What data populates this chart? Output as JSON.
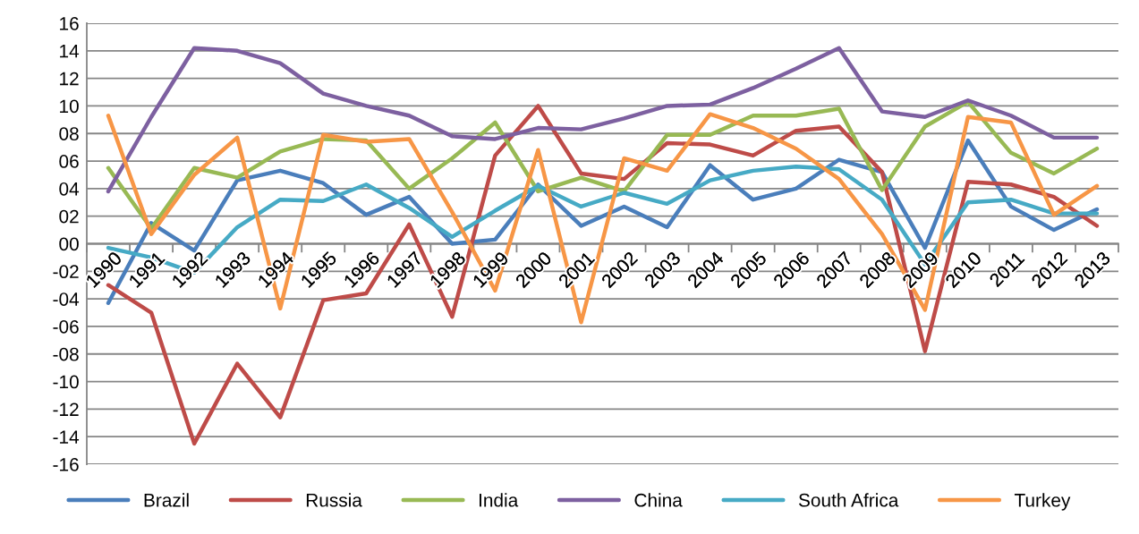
{
  "chart_data": {
    "type": "line",
    "categories": [
      "1990",
      "1991",
      "1992",
      "1993",
      "1994",
      "1995",
      "1996",
      "1997",
      "1998",
      "1999",
      "2000",
      "2001",
      "2002",
      "2003",
      "2004",
      "2005",
      "2006",
      "2007",
      "2008",
      "2009",
      "2010",
      "2011",
      "2012",
      "2013"
    ],
    "series": [
      {
        "name": "Brazil",
        "color": "#4a7ebb",
        "values": [
          -4.3,
          1.5,
          -0.5,
          4.6,
          5.3,
          4.4,
          2.1,
          3.4,
          0.0,
          0.3,
          4.3,
          1.3,
          2.7,
          1.2,
          5.7,
          3.2,
          4.0,
          6.1,
          5.2,
          -0.3,
          7.5,
          2.7,
          1.0,
          2.5
        ]
      },
      {
        "name": "Russia",
        "color": "#be4b48",
        "values": [
          -3.0,
          -5.0,
          -14.5,
          -8.7,
          -12.6,
          -4.1,
          -3.6,
          1.4,
          -5.3,
          6.4,
          10.0,
          5.1,
          4.7,
          7.3,
          7.2,
          6.4,
          8.2,
          8.5,
          5.2,
          -7.8,
          4.5,
          4.3,
          3.4,
          1.3
        ]
      },
      {
        "name": "India",
        "color": "#98b954",
        "values": [
          5.5,
          1.1,
          5.5,
          4.8,
          6.7,
          7.6,
          7.5,
          4.0,
          6.2,
          8.8,
          3.8,
          4.8,
          3.8,
          7.9,
          7.9,
          9.3,
          9.3,
          9.8,
          3.9,
          8.5,
          10.3,
          6.6,
          5.1,
          6.9
        ]
      },
      {
        "name": "China",
        "color": "#7d60a0",
        "values": [
          3.8,
          9.2,
          14.2,
          14.0,
          13.1,
          10.9,
          10.0,
          9.3,
          7.8,
          7.6,
          8.4,
          8.3,
          9.1,
          10.0,
          10.1,
          11.3,
          12.7,
          14.2,
          9.6,
          9.2,
          10.4,
          9.3,
          7.7,
          7.7
        ]
      },
      {
        "name": "South Africa",
        "color": "#46aac5",
        "values": [
          -0.3,
          -1.0,
          -2.1,
          1.2,
          3.2,
          3.1,
          4.3,
          2.6,
          0.5,
          2.4,
          4.2,
          2.7,
          3.7,
          2.9,
          4.6,
          5.3,
          5.6,
          5.4,
          3.2,
          -1.5,
          3.0,
          3.2,
          2.2,
          2.2
        ]
      },
      {
        "name": "Turkey",
        "color": "#f79646",
        "values": [
          9.3,
          0.7,
          5.0,
          7.7,
          -4.7,
          7.9,
          7.4,
          7.6,
          2.3,
          -3.4,
          6.8,
          -5.7,
          6.2,
          5.3,
          9.4,
          8.4,
          6.9,
          4.7,
          0.7,
          -4.8,
          9.2,
          8.8,
          2.1,
          4.2
        ]
      }
    ],
    "ylim": [
      -16,
      16
    ],
    "yticks": [
      {
        "value": -16,
        "label": "-16"
      },
      {
        "value": -14,
        "label": "-14"
      },
      {
        "value": -12,
        "label": "-12"
      },
      {
        "value": -10,
        "label": "-10"
      },
      {
        "value": -8,
        "label": "-08"
      },
      {
        "value": -6,
        "label": "-06"
      },
      {
        "value": -4,
        "label": "-04"
      },
      {
        "value": -2,
        "label": "-02"
      },
      {
        "value": 0,
        "label": "00"
      },
      {
        "value": 2,
        "label": "02"
      },
      {
        "value": 4,
        "label": "04"
      },
      {
        "value": 6,
        "label": "06"
      },
      {
        "value": 8,
        "label": "08"
      },
      {
        "value": 10,
        "label": "10"
      },
      {
        "value": 12,
        "label": "12"
      },
      {
        "value": 14,
        "label": "14"
      },
      {
        "value": 16,
        "label": "16"
      }
    ],
    "grid": "y",
    "legend": "bottom",
    "marker": "none",
    "line_style": "solid"
  }
}
